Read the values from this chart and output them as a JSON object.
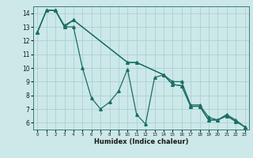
{
  "title": "",
  "xlabel": "Humidex (Indice chaleur)",
  "ylabel": "",
  "bg_color": "#cce8e8",
  "line_color": "#1a6e65",
  "grid_color": "#aed0d0",
  "ylim": [
    5.5,
    14.5
  ],
  "xlim": [
    -0.5,
    23.5
  ],
  "yticks": [
    6,
    7,
    8,
    9,
    10,
    11,
    12,
    13,
    14
  ],
  "xticks": [
    0,
    1,
    2,
    3,
    4,
    5,
    6,
    7,
    8,
    9,
    10,
    11,
    12,
    13,
    14,
    15,
    16,
    17,
    18,
    19,
    20,
    21,
    22,
    23
  ],
  "line1_x": [
    0,
    1,
    2,
    3,
    4,
    5,
    6,
    7,
    8,
    9,
    10,
    11,
    12,
    13,
    14,
    15,
    16,
    17,
    18,
    19,
    20,
    21,
    22,
    23
  ],
  "line1_y": [
    12.6,
    14.2,
    14.2,
    13.0,
    13.0,
    10.0,
    7.8,
    7.0,
    7.5,
    8.3,
    9.9,
    6.6,
    5.9,
    9.3,
    9.5,
    8.8,
    8.7,
    7.2,
    7.2,
    6.2,
    6.2,
    6.5,
    6.1,
    5.7
  ],
  "line2_x": [
    0,
    1,
    2,
    3,
    4,
    10,
    11,
    14,
    15,
    16,
    17,
    18,
    19,
    20,
    21,
    22,
    23
  ],
  "line2_y": [
    12.6,
    14.2,
    14.2,
    13.1,
    13.5,
    10.4,
    10.4,
    9.5,
    9.0,
    9.0,
    7.3,
    7.3,
    6.4,
    6.2,
    6.6,
    6.2,
    5.7
  ],
  "line3_x": [
    0,
    1,
    2,
    3,
    4,
    10,
    11,
    14,
    15,
    16,
    17,
    18,
    19,
    20,
    21,
    22,
    23
  ],
  "line3_y": [
    12.6,
    14.2,
    14.2,
    13.0,
    13.5,
    10.4,
    10.4,
    9.5,
    8.8,
    8.7,
    7.2,
    7.2,
    6.2,
    6.2,
    6.5,
    6.1,
    5.7
  ],
  "marker": "^",
  "markersize": 2.5,
  "linewidth": 0.9,
  "tick_fontsize_x": 4.0,
  "tick_fontsize_y": 5.5,
  "xlabel_fontsize": 6.0
}
